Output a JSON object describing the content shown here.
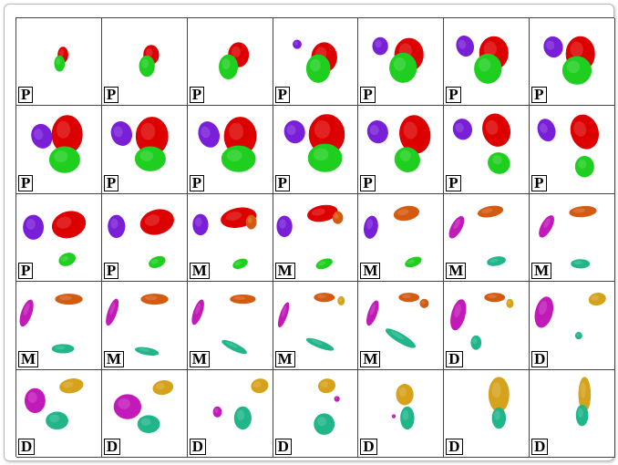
{
  "colors": {
    "purple": "#7a1fd8",
    "red": "#dd0000",
    "green": "#1fcf1f",
    "orange": "#d45a10",
    "teal": "#21b58a",
    "magenta": "#c21ab8",
    "gold": "#d6a21c"
  },
  "rows": [
    [
      {
        "stage": "P",
        "blobs": [
          [
            "red",
            0.55,
            0.42,
            0.06,
            0.09,
            0
          ],
          [
            "green",
            0.51,
            0.52,
            0.06,
            0.09,
            0
          ]
        ]
      },
      {
        "stage": "P",
        "blobs": [
          [
            "red",
            0.58,
            0.42,
            0.09,
            0.11,
            0
          ],
          [
            "green",
            0.53,
            0.55,
            0.09,
            0.12,
            0
          ]
        ]
      },
      {
        "stage": "P",
        "blobs": [
          [
            "red",
            0.6,
            0.42,
            0.12,
            0.14,
            0
          ],
          [
            "green",
            0.48,
            0.56,
            0.11,
            0.14,
            0
          ]
        ]
      },
      {
        "stage": "P",
        "blobs": [
          [
            "purple",
            0.28,
            0.3,
            0.05,
            0.05,
            0
          ],
          [
            "red",
            0.6,
            0.45,
            0.15,
            0.17,
            0
          ],
          [
            "green",
            0.53,
            0.58,
            0.14,
            0.16,
            0
          ]
        ]
      },
      {
        "stage": "P",
        "blobs": [
          [
            "purple",
            0.26,
            0.32,
            0.09,
            0.1,
            0
          ],
          [
            "red",
            0.6,
            0.42,
            0.17,
            0.19,
            0
          ],
          [
            "green",
            0.53,
            0.57,
            0.16,
            0.17,
            0
          ]
        ]
      },
      {
        "stage": "P",
        "blobs": [
          [
            "purple",
            0.25,
            0.32,
            0.1,
            0.12,
            -20
          ],
          [
            "red",
            0.59,
            0.4,
            0.17,
            0.19,
            0
          ],
          [
            "green",
            0.52,
            0.58,
            0.16,
            0.17,
            0
          ]
        ]
      },
      {
        "stage": "P",
        "blobs": [
          [
            "purple",
            0.28,
            0.33,
            0.11,
            0.12,
            -20
          ],
          [
            "red",
            0.6,
            0.41,
            0.17,
            0.2,
            0
          ],
          [
            "green",
            0.56,
            0.6,
            0.17,
            0.16,
            0
          ]
        ]
      }
    ],
    [
      {
        "stage": "P",
        "blobs": [
          [
            "purple",
            0.3,
            0.35,
            0.12,
            0.14,
            -20
          ],
          [
            "red",
            0.6,
            0.33,
            0.18,
            0.22,
            0
          ],
          [
            "green",
            0.57,
            0.62,
            0.18,
            0.15,
            0
          ]
        ]
      },
      {
        "stage": "P",
        "blobs": [
          [
            "purple",
            0.23,
            0.32,
            0.12,
            0.14,
            -20
          ],
          [
            "red",
            0.59,
            0.35,
            0.19,
            0.22,
            0
          ],
          [
            "green",
            0.57,
            0.61,
            0.18,
            0.14,
            0
          ]
        ]
      },
      {
        "stage": "P",
        "blobs": [
          [
            "purple",
            0.25,
            0.33,
            0.12,
            0.15,
            -20
          ],
          [
            "red",
            0.62,
            0.35,
            0.19,
            0.22,
            0
          ],
          [
            "green",
            0.6,
            0.61,
            0.2,
            0.15,
            0
          ]
        ]
      },
      {
        "stage": "P",
        "blobs": [
          [
            "purple",
            0.25,
            0.3,
            0.12,
            0.13,
            -20
          ],
          [
            "red",
            0.63,
            0.33,
            0.21,
            0.23,
            0
          ],
          [
            "green",
            0.61,
            0.6,
            0.2,
            0.16,
            0
          ]
        ]
      },
      {
        "stage": "P",
        "blobs": [
          [
            "purple",
            0.23,
            0.3,
            0.12,
            0.13,
            -20
          ],
          [
            "red",
            0.67,
            0.33,
            0.18,
            0.22,
            -10
          ],
          [
            "green",
            0.58,
            0.62,
            0.15,
            0.14,
            20
          ]
        ]
      },
      {
        "stage": "P",
        "blobs": [
          [
            "purple",
            0.22,
            0.27,
            0.11,
            0.12,
            -20
          ],
          [
            "red",
            0.62,
            0.28,
            0.16,
            0.19,
            -20
          ],
          [
            "green",
            0.65,
            0.66,
            0.13,
            0.12,
            20
          ]
        ]
      },
      {
        "stage": "P",
        "blobs": [
          [
            "purple",
            0.2,
            0.28,
            0.1,
            0.13,
            -20
          ],
          [
            "red",
            0.65,
            0.3,
            0.16,
            0.2,
            -20
          ],
          [
            "green",
            0.65,
            0.7,
            0.11,
            0.12,
            0
          ]
        ]
      }
    ],
    [
      {
        "stage": "P",
        "blobs": [
          [
            "purple",
            0.2,
            0.38,
            0.12,
            0.14,
            0
          ],
          [
            "red",
            0.62,
            0.35,
            0.2,
            0.15,
            -15
          ],
          [
            "green",
            0.6,
            0.75,
            0.1,
            0.07,
            -20
          ]
        ]
      },
      {
        "stage": "P",
        "blobs": [
          [
            "purple",
            0.17,
            0.37,
            0.1,
            0.13,
            0
          ],
          [
            "red",
            0.65,
            0.32,
            0.2,
            0.14,
            -15
          ],
          [
            "green",
            0.65,
            0.78,
            0.1,
            0.06,
            -20
          ]
        ]
      },
      {
        "stage": "M",
        "blobs": [
          [
            "purple",
            0.15,
            0.35,
            0.09,
            0.12,
            0
          ],
          [
            "red",
            0.6,
            0.27,
            0.21,
            0.11,
            -10
          ],
          [
            "orange",
            0.75,
            0.32,
            0.06,
            0.08,
            0
          ],
          [
            "green",
            0.62,
            0.8,
            0.09,
            0.05,
            -20
          ]
        ]
      },
      {
        "stage": "M",
        "blobs": [
          [
            "purple",
            0.13,
            0.37,
            0.09,
            0.12,
            0
          ],
          [
            "red",
            0.58,
            0.22,
            0.18,
            0.09,
            -10
          ],
          [
            "orange",
            0.76,
            0.27,
            0.06,
            0.07,
            0
          ],
          [
            "green",
            0.6,
            0.8,
            0.1,
            0.05,
            -20
          ]
        ]
      },
      {
        "stage": "M",
        "blobs": [
          [
            "purple",
            0.15,
            0.38,
            0.08,
            0.13,
            10
          ],
          [
            "orange",
            0.57,
            0.22,
            0.15,
            0.08,
            -10
          ],
          [
            "green",
            0.65,
            0.78,
            0.1,
            0.05,
            -20
          ]
        ]
      },
      {
        "stage": "M",
        "blobs": [
          [
            "magenta",
            0.15,
            0.38,
            0.06,
            0.14,
            30
          ],
          [
            "orange",
            0.55,
            0.2,
            0.15,
            0.06,
            -10
          ],
          [
            "teal",
            0.62,
            0.77,
            0.11,
            0.05,
            -10
          ]
        ]
      },
      {
        "stage": "M",
        "blobs": [
          [
            "magenta",
            0.2,
            0.37,
            0.06,
            0.14,
            30
          ],
          [
            "orange",
            0.63,
            0.2,
            0.16,
            0.06,
            -5
          ],
          [
            "teal",
            0.6,
            0.8,
            0.11,
            0.05,
            0
          ]
        ]
      }
    ],
    [
      {
        "stage": "M",
        "blobs": [
          [
            "magenta",
            0.12,
            0.36,
            0.06,
            0.16,
            20
          ],
          [
            "orange",
            0.62,
            0.2,
            0.16,
            0.06,
            0
          ],
          [
            "teal",
            0.55,
            0.77,
            0.13,
            0.05,
            0
          ]
        ]
      },
      {
        "stage": "M",
        "blobs": [
          [
            "magenta",
            0.12,
            0.35,
            0.05,
            0.16,
            20
          ],
          [
            "orange",
            0.62,
            0.2,
            0.16,
            0.06,
            0
          ],
          [
            "teal",
            0.53,
            0.8,
            0.14,
            0.04,
            10
          ]
        ]
      },
      {
        "stage": "M",
        "blobs": [
          [
            "magenta",
            0.12,
            0.35,
            0.05,
            0.15,
            20
          ],
          [
            "orange",
            0.65,
            0.2,
            0.15,
            0.05,
            0
          ],
          [
            "teal",
            0.55,
            0.75,
            0.16,
            0.04,
            25
          ]
        ]
      },
      {
        "stage": "M",
        "blobs": [
          [
            "magenta",
            0.12,
            0.38,
            0.04,
            0.15,
            20
          ],
          [
            "orange",
            0.6,
            0.18,
            0.12,
            0.05,
            0
          ],
          [
            "gold",
            0.8,
            0.22,
            0.04,
            0.05,
            0
          ],
          [
            "teal",
            0.55,
            0.72,
            0.17,
            0.04,
            20
          ]
        ]
      },
      {
        "stage": "M",
        "blobs": [
          [
            "magenta",
            0.17,
            0.36,
            0.05,
            0.15,
            20
          ],
          [
            "orange",
            0.6,
            0.18,
            0.12,
            0.05,
            0
          ],
          [
            "orange",
            0.78,
            0.25,
            0.05,
            0.05,
            0
          ],
          [
            "teal",
            0.5,
            0.65,
            0.2,
            0.05,
            30
          ]
        ]
      },
      {
        "stage": "D",
        "blobs": [
          [
            "magenta",
            0.17,
            0.38,
            0.08,
            0.18,
            15
          ],
          [
            "orange",
            0.6,
            0.18,
            0.12,
            0.05,
            0
          ],
          [
            "gold",
            0.78,
            0.25,
            0.04,
            0.05,
            0
          ],
          [
            "teal",
            0.38,
            0.7,
            0.06,
            0.08,
            0
          ]
        ]
      },
      {
        "stage": "D",
        "blobs": [
          [
            "magenta",
            0.17,
            0.35,
            0.1,
            0.18,
            15
          ],
          [
            "gold",
            0.8,
            0.2,
            0.1,
            0.07,
            -10
          ],
          [
            "teal",
            0.58,
            0.62,
            0.04,
            0.04,
            0
          ]
        ]
      }
    ],
    [
      {
        "stage": "D",
        "blobs": [
          [
            "magenta",
            0.22,
            0.35,
            0.12,
            0.14,
            0
          ],
          [
            "gold",
            0.65,
            0.18,
            0.14,
            0.08,
            -10
          ],
          [
            "teal",
            0.48,
            0.58,
            0.13,
            0.1,
            0
          ]
        ]
      },
      {
        "stage": "D",
        "blobs": [
          [
            "magenta",
            0.3,
            0.42,
            0.16,
            0.14,
            0
          ],
          [
            "gold",
            0.72,
            0.2,
            0.12,
            0.08,
            -10
          ],
          [
            "teal",
            0.55,
            0.62,
            0.13,
            0.1,
            0
          ]
        ]
      },
      {
        "stage": "D",
        "blobs": [
          [
            "magenta",
            0.35,
            0.48,
            0.05,
            0.06,
            0
          ],
          [
            "gold",
            0.85,
            0.18,
            0.1,
            0.08,
            -10
          ],
          [
            "teal",
            0.65,
            0.55,
            0.1,
            0.13,
            0
          ]
        ]
      },
      {
        "stage": "D",
        "blobs": [
          [
            "magenta",
            0.75,
            0.33,
            0.03,
            0.03,
            0
          ],
          [
            "gold",
            0.63,
            0.18,
            0.1,
            0.08,
            -10
          ],
          [
            "teal",
            0.6,
            0.62,
            0.12,
            0.12,
            0
          ]
        ]
      },
      {
        "stage": "D",
        "blobs": [
          [
            "gold",
            0.55,
            0.28,
            0.1,
            0.12,
            0
          ],
          [
            "teal",
            0.58,
            0.55,
            0.08,
            0.13,
            0
          ],
          [
            "magenta",
            0.42,
            0.53,
            0.02,
            0.02,
            0
          ]
        ]
      },
      {
        "stage": "D",
        "blobs": [
          [
            "gold",
            0.65,
            0.28,
            0.12,
            0.2,
            0
          ],
          [
            "teal",
            0.65,
            0.55,
            0.08,
            0.12,
            0
          ]
        ]
      },
      {
        "stage": "D",
        "blobs": [
          [
            "gold",
            0.65,
            0.28,
            0.07,
            0.2,
            0
          ],
          [
            "teal",
            0.62,
            0.52,
            0.07,
            0.12,
            0
          ]
        ]
      }
    ]
  ]
}
